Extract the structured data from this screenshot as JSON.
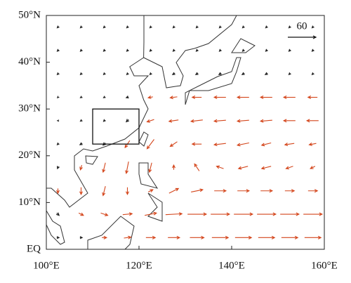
{
  "chart_data": {
    "type": "quiver",
    "xlim": [
      100,
      160
    ],
    "ylim": [
      0,
      50
    ],
    "xticks": [
      {
        "value": 100,
        "label": "100°E"
      },
      {
        "value": 120,
        "label": "120°E"
      },
      {
        "value": 140,
        "label": "140°E"
      },
      {
        "value": 160,
        "label": "160°E"
      }
    ],
    "yticks": [
      {
        "value": 0,
        "label": "EQ"
      },
      {
        "value": 10,
        "label": "10°N"
      },
      {
        "value": 20,
        "label": "20°N"
      },
      {
        "value": 30,
        "label": "30°N"
      },
      {
        "value": 40,
        "label": "40°N"
      },
      {
        "value": 50,
        "label": "50°N"
      }
    ],
    "reference_vector": 60,
    "significant_color": "#d4461c",
    "other_color": "#222222",
    "box": {
      "lon": [
        110,
        120
      ],
      "lat": [
        22.5,
        30
      ]
    },
    "lon": [
      102.5,
      107.5,
      112.5,
      117.5,
      122.5,
      127.5,
      132.5,
      137.5,
      142.5,
      147.5,
      152.5,
      157.5
    ],
    "lat": [
      2.5,
      7.5,
      12.5,
      17.5,
      22.5,
      27.5,
      32.5,
      37.5,
      42.5,
      47.5
    ],
    "u": [
      [
        5,
        5,
        10,
        15,
        20,
        25,
        30,
        35,
        35,
        35,
        35,
        35
      ],
      [
        5,
        10,
        15,
        20,
        25,
        35,
        40,
        40,
        40,
        40,
        40,
        40
      ],
      [
        0,
        0,
        -5,
        0,
        10,
        20,
        25,
        25,
        25,
        25,
        20,
        20
      ],
      [
        -2,
        -3,
        -5,
        -5,
        -5,
        0,
        -10,
        -15,
        -20,
        -20,
        -15,
        -10
      ],
      [
        -3,
        -5,
        -5,
        -10,
        -15,
        -15,
        -20,
        -25,
        -25,
        -20,
        -20,
        -15
      ],
      [
        -2,
        -3,
        -3,
        -5,
        -15,
        -20,
        -25,
        -25,
        -25,
        -25,
        -25,
        -25
      ],
      [
        -2,
        -3,
        -3,
        -5,
        -10,
        -15,
        -20,
        -25,
        -25,
        -25,
        -25,
        -20
      ],
      [
        -3,
        -3,
        -3,
        -3,
        -3,
        -5,
        -5,
        -5,
        -5,
        -5,
        -3,
        -3
      ],
      [
        -3,
        -3,
        -3,
        -3,
        -3,
        -3,
        -3,
        -3,
        -3,
        -3,
        -3,
        -3
      ],
      [
        -3,
        -3,
        -3,
        -3,
        -3,
        -3,
        -3,
        -3,
        -3,
        -3,
        -3,
        -3
      ]
    ],
    "v": [
      [
        0,
        0,
        0,
        2,
        0,
        0,
        0,
        0,
        0,
        0,
        0,
        0
      ],
      [
        -5,
        -5,
        -5,
        2,
        5,
        2,
        0,
        0,
        0,
        0,
        0,
        0
      ],
      [
        -10,
        -15,
        -20,
        -15,
        5,
        10,
        5,
        0,
        0,
        0,
        0,
        0
      ],
      [
        -5,
        -10,
        -20,
        -25,
        -20,
        10,
        15,
        5,
        -5,
        -5,
        -5,
        -5
      ],
      [
        -3,
        -3,
        -5,
        -15,
        -20,
        -10,
        0,
        -3,
        -5,
        -5,
        -3,
        -3
      ],
      [
        0,
        -2,
        -3,
        -5,
        -5,
        -3,
        -3,
        -2,
        -2,
        -2,
        0,
        0
      ],
      [
        -2,
        -2,
        -2,
        -2,
        -2,
        -2,
        0,
        0,
        0,
        0,
        0,
        0
      ],
      [
        -3,
        -3,
        -3,
        -3,
        -3,
        -3,
        -3,
        -3,
        -3,
        -3,
        -3,
        -3
      ],
      [
        -3,
        -3,
        -3,
        -3,
        -3,
        -3,
        -3,
        -3,
        -3,
        -3,
        -3,
        -3
      ],
      [
        -3,
        -3,
        -3,
        -3,
        -3,
        -3,
        -3,
        -3,
        -3,
        -3,
        -3,
        -3
      ]
    ],
    "significant": [
      [
        0,
        0,
        1,
        1,
        1,
        1,
        1,
        1,
        1,
        1,
        1,
        1
      ],
      [
        0,
        1,
        1,
        1,
        1,
        1,
        1,
        1,
        1,
        1,
        1,
        1
      ],
      [
        1,
        1,
        1,
        1,
        1,
        1,
        1,
        1,
        1,
        1,
        1,
        1
      ],
      [
        0,
        1,
        1,
        1,
        1,
        1,
        1,
        1,
        1,
        1,
        1,
        1
      ],
      [
        0,
        0,
        0,
        1,
        1,
        1,
        1,
        1,
        1,
        1,
        1,
        1
      ],
      [
        0,
        0,
        0,
        0,
        1,
        1,
        1,
        1,
        1,
        1,
        1,
        1
      ],
      [
        0,
        0,
        0,
        0,
        1,
        1,
        1,
        1,
        1,
        1,
        1,
        1
      ],
      [
        0,
        0,
        0,
        0,
        0,
        0,
        0,
        0,
        0,
        0,
        0,
        0
      ],
      [
        0,
        0,
        0,
        0,
        0,
        0,
        0,
        0,
        0,
        0,
        0,
        0
      ],
      [
        0,
        0,
        0,
        0,
        0,
        0,
        0,
        0,
        0,
        0,
        0,
        0
      ]
    ]
  }
}
